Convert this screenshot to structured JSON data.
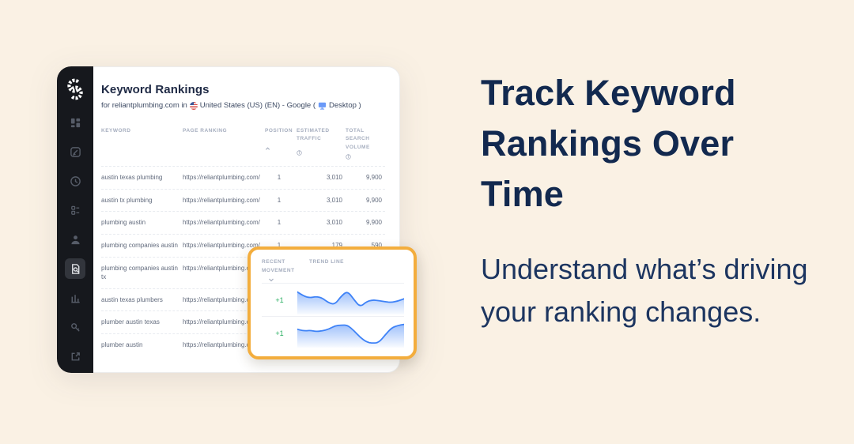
{
  "colors": {
    "background": "#faf1e4",
    "accent_orange": "#f3ad3d",
    "positive_green": "#27ae60",
    "trend_blue": "#3e82f7",
    "navy": "#12294f"
  },
  "right_panel": {
    "heading": "Track Keyword Rankings Over Time",
    "body": "Understand what’s driving your ranking changes."
  },
  "app": {
    "sidebar": {
      "logo": "gear-s-logo",
      "items": [
        {
          "icon": "dashboard-icon",
          "active": false
        },
        {
          "icon": "content-editor-icon",
          "active": false
        },
        {
          "icon": "clock-icon",
          "active": false
        },
        {
          "icon": "task-list-icon",
          "active": false
        },
        {
          "icon": "user-icon",
          "active": false
        },
        {
          "icon": "site-audit-search-icon",
          "active": true
        },
        {
          "icon": "bar-chart-icon",
          "active": false
        },
        {
          "icon": "key-icon",
          "active": false
        },
        {
          "icon": "external-link-icon",
          "active": false
        }
      ]
    },
    "header": {
      "title": "Keyword Rankings",
      "subtitle_part1": "for reliantplumbing.com in",
      "subtitle_part2": "United States (US) (EN) - Google (",
      "subtitle_part3": "Desktop )",
      "flag_icon": "us-flag-icon",
      "device_icon": "desktop-monitor-icon"
    },
    "table": {
      "headers": {
        "keyword": "KEYWORD",
        "page_ranking": "PAGE RANKING",
        "position": "POSITION",
        "position_sort_icon": "chevron-up-icon",
        "estimated_traffic": "ESTIMATED TRAFFIC",
        "total_search_volume": "TOTAL SEARCH VOLUME",
        "info_icon": "info-icon"
      },
      "rows": [
        {
          "keyword": "austin texas plumbing",
          "url": "https://reliantplumbing.com/",
          "position": "1",
          "traffic": "3,010",
          "volume": "9,900"
        },
        {
          "keyword": "austin tx plumbing",
          "url": "https://reliantplumbing.com/",
          "position": "1",
          "traffic": "3,010",
          "volume": "9,900"
        },
        {
          "keyword": "plumbing austin",
          "url": "https://reliantplumbing.com/",
          "position": "1",
          "traffic": "3,010",
          "volume": "9,900"
        },
        {
          "keyword": "plumbing companies austin",
          "url": "https://reliantplumbing.com/",
          "position": "1",
          "traffic": "179",
          "volume": "590"
        },
        {
          "keyword": "plumbing companies austin tx",
          "url": "https://reliantplumbing.com/",
          "position": "",
          "traffic": "",
          "volume": ""
        },
        {
          "keyword": "austin texas plumbers",
          "url": "https://reliantplumbing.com/",
          "position": "",
          "traffic": "",
          "volume": ""
        },
        {
          "keyword": "plumber austin texas",
          "url": "https://reliantplumbing.com/",
          "position": "",
          "traffic": "",
          "volume": ""
        },
        {
          "keyword": "plumber austin",
          "url": "https://reliantplumbing.com/",
          "position": "",
          "traffic": "",
          "volume": ""
        }
      ]
    },
    "callout": {
      "col_movement": "RECENT MOVEMENT",
      "col_trend": "TREND LINE",
      "sort_icon": "chevron-down-icon",
      "rows": [
        {
          "movement": "+1"
        },
        {
          "movement": "+1"
        }
      ]
    }
  },
  "chart_data": [
    {
      "type": "area",
      "name": "trend-line-row-1",
      "values": [
        88,
        70,
        62,
        68,
        61,
        40,
        33,
        70,
        92,
        55,
        22,
        45,
        53,
        50,
        45,
        42,
        48,
        58
      ]
    },
    {
      "type": "area",
      "name": "trend-line-row-2",
      "values": [
        70,
        62,
        65,
        60,
        63,
        70,
        85,
        88,
        88,
        64,
        35,
        14,
        9,
        12,
        45,
        76,
        86,
        91
      ]
    }
  ]
}
